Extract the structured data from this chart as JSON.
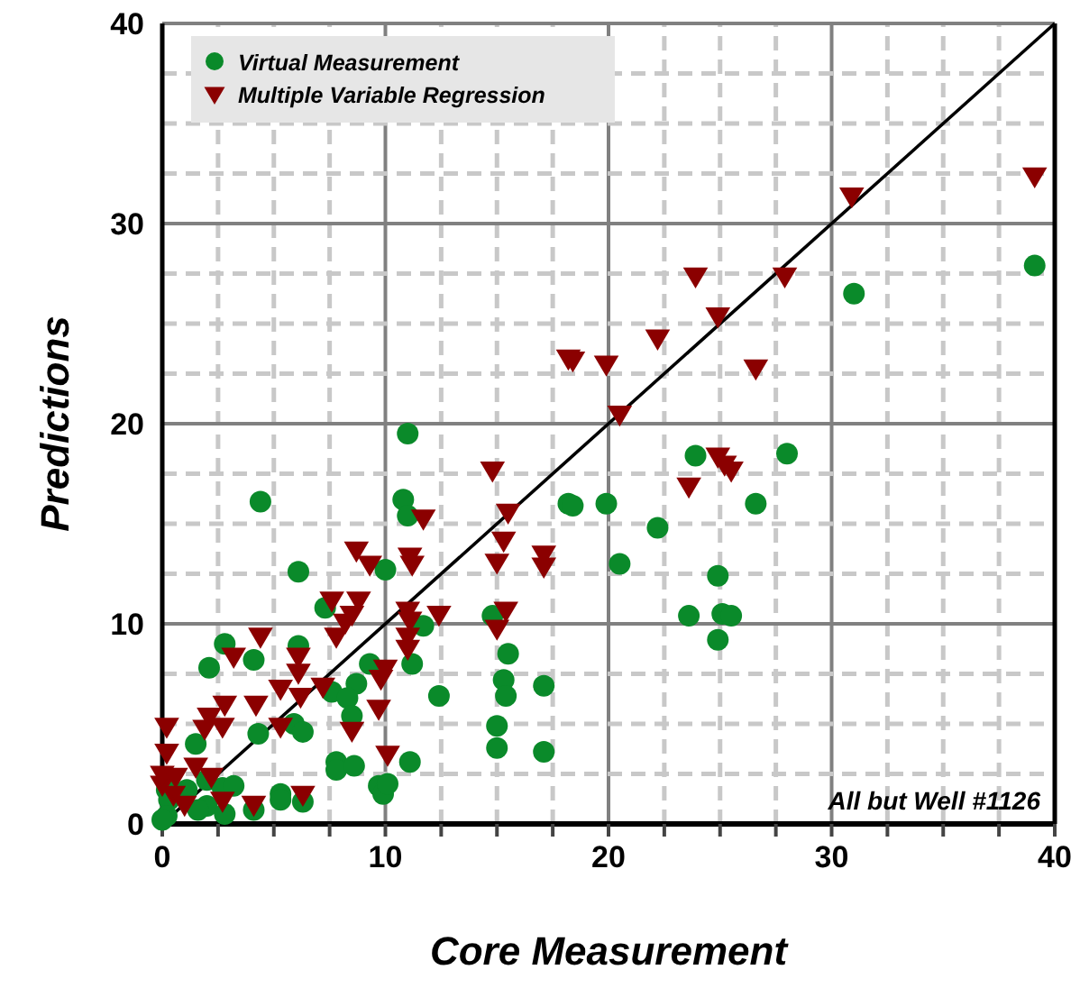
{
  "chart_data": {
    "type": "scatter",
    "xlabel": "Core Measurement",
    "ylabel": "Predictions",
    "xlim": [
      0,
      40
    ],
    "ylim": [
      0,
      40
    ],
    "xticks": [
      0,
      {
        "value": 2.5,
        "label": null
      },
      {
        "value": 5,
        "label": null
      },
      {
        "value": 7.5,
        "label": null
      },
      10,
      {
        "value": 12.5,
        "label": null
      },
      {
        "value": 15,
        "label": null
      },
      {
        "value": 17.5,
        "label": null
      },
      20,
      {
        "value": 22.5,
        "label": null
      },
      {
        "value": 25,
        "label": null
      },
      {
        "value": 27.5,
        "label": null
      },
      30,
      {
        "value": 32.5,
        "label": null
      },
      {
        "value": 35,
        "label": null
      },
      {
        "value": 37.5,
        "label": null
      },
      40
    ],
    "yticks": [
      0,
      {
        "value": 2.5,
        "label": null
      },
      {
        "value": 5,
        "label": null
      },
      {
        "value": 7.5,
        "label": null
      },
      10,
      {
        "value": 12.5,
        "label": null
      },
      {
        "value": 15,
        "label": null
      },
      {
        "value": 17.5,
        "label": null
      },
      20,
      {
        "value": 22.5,
        "label": null
      },
      {
        "value": 25,
        "label": null
      },
      {
        "value": 27.5,
        "label": null
      },
      30,
      {
        "value": 32.5,
        "label": null
      },
      {
        "value": 35,
        "label": null
      },
      {
        "value": 37.5,
        "label": null
      },
      40
    ],
    "grid": true,
    "legend": "top left",
    "annotations": [
      "All but Well #1126"
    ],
    "series": [
      {
        "type": "line",
        "color": "#000000",
        "marker": "none",
        "line_style": "solid",
        "x": [
          0,
          40
        ],
        "values": [
          0,
          40
        ]
      },
      {
        "name": "Virtual Measurement",
        "marker": "circle",
        "color": "#0a8a2a",
        "x": [
          4.4,
          11.0,
          10.8,
          11.0,
          6.1,
          10.0,
          7.3,
          11.7,
          2.8,
          6.1,
          4.1,
          2.1,
          9.3,
          11.2,
          8.7,
          7.6,
          8.3,
          12.4,
          8.5,
          5.9,
          6.3,
          4.3,
          1.5,
          7.8,
          7.8,
          8.6,
          11.1,
          2.0,
          2.7,
          3.2,
          5.3,
          5.3,
          6.3,
          9.7,
          9.9,
          10.1,
          2.0,
          2.8,
          4.1,
          0.2,
          0.3,
          0.2,
          0.0,
          1.6,
          1.1,
          23.9,
          28.0,
          18.2,
          18.4,
          19.9,
          26.6,
          22.2,
          20.5,
          24.9,
          14.8,
          23.6,
          25.1,
          25.5,
          24.9,
          15.5,
          15.3,
          15.4,
          17.1,
          15.0,
          15.0,
          17.1,
          31.0,
          39.1
        ],
        "values": [
          16.1,
          19.5,
          16.2,
          15.4,
          12.6,
          12.7,
          10.8,
          9.9,
          9.0,
          8.9,
          8.2,
          7.8,
          8.0,
          8.0,
          7.0,
          6.6,
          6.3,
          6.4,
          5.4,
          5.0,
          4.6,
          4.5,
          4.0,
          3.1,
          2.7,
          2.9,
          3.1,
          2.2,
          1.8,
          1.9,
          1.5,
          1.2,
          1.1,
          1.9,
          1.5,
          2.0,
          0.9,
          0.5,
          0.7,
          1.7,
          1.2,
          0.4,
          0.2,
          0.7,
          1.7,
          18.4,
          18.5,
          16.0,
          15.9,
          16.0,
          16.0,
          14.8,
          13.0,
          12.4,
          10.4,
          10.4,
          10.5,
          10.4,
          9.2,
          8.5,
          7.2,
          6.4,
          6.9,
          4.9,
          3.8,
          3.6,
          26.5,
          27.9
        ]
      },
      {
        "name": "Multiple Variable Regression",
        "marker": "triangle",
        "color": "#8b0000",
        "x": [
          11.7,
          8.7,
          11.1,
          9.3,
          11.2,
          7.6,
          8.8,
          8.5,
          11.0,
          12.4,
          11.1,
          8.2,
          7.8,
          4.4,
          11.0,
          11.0,
          3.2,
          6.1,
          6.1,
          10.0,
          9.8,
          7.2,
          5.3,
          6.2,
          2.8,
          4.2,
          2.1,
          9.7,
          0.2,
          1.9,
          2.7,
          5.3,
          8.5,
          0.2,
          0.0,
          10.1,
          1.5,
          0.0,
          0.6,
          2.2,
          6.3,
          4.1,
          2.7,
          0.5,
          1.0,
          23.9,
          27.9,
          24.9,
          22.2,
          18.2,
          18.4,
          19.9,
          26.6,
          20.5,
          14.8,
          24.9,
          25.2,
          25.5,
          23.6,
          15.5,
          15.3,
          15.0,
          17.1,
          17.1,
          15.4,
          15.0,
          30.9,
          39.1
        ],
        "values": [
          15.3,
          13.7,
          13.4,
          13.0,
          13.0,
          11.2,
          11.2,
          10.5,
          10.7,
          10.5,
          10.2,
          10.1,
          9.4,
          9.4,
          9.4,
          8.8,
          8.4,
          8.4,
          7.6,
          7.8,
          7.3,
          6.9,
          6.8,
          6.4,
          6.0,
          6.0,
          5.4,
          5.8,
          4.9,
          4.8,
          4.9,
          4.9,
          4.7,
          3.6,
          2.0,
          3.5,
          2.9,
          2.5,
          2.4,
          2.4,
          1.5,
          1.0,
          1.2,
          1.5,
          1.0,
          27.4,
          27.4,
          25.4,
          24.3,
          23.3,
          23.2,
          23.0,
          22.8,
          20.5,
          17.7,
          18.4,
          18.0,
          17.7,
          16.9,
          15.6,
          14.2,
          13.1,
          13.5,
          12.9,
          10.7,
          9.8,
          31.4,
          32.4
        ]
      }
    ]
  }
}
